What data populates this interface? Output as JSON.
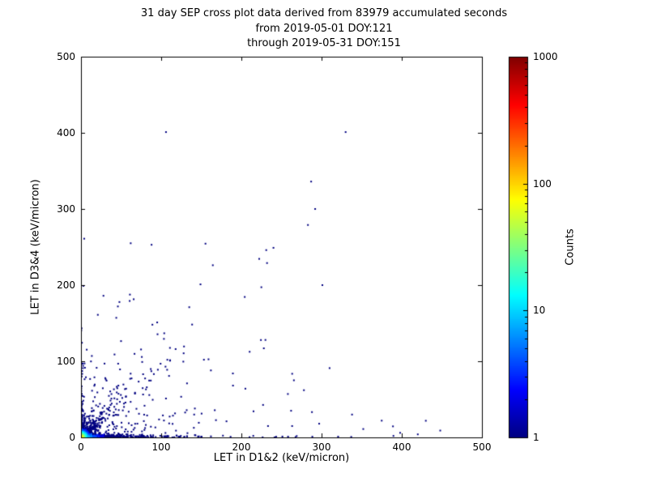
{
  "title": {
    "line1": "31 day SEP cross plot data derived from 83979 accumulated seconds",
    "line2": "from 2019-05-01 DOY:121",
    "line3": "through 2019-05-31 DOY:151"
  },
  "chart_data": {
    "type": "scatter",
    "xlabel": "LET in D1&2 (keV/micron)",
    "ylabel": "LET in D3&4 (keV/micron)",
    "xlim": [
      0,
      500
    ],
    "ylim": [
      0,
      500
    ],
    "x_ticks": [
      0,
      100,
      200,
      300,
      400,
      500
    ],
    "y_ticks": [
      0,
      100,
      200,
      300,
      400,
      500
    ],
    "grid": false,
    "seed": 42,
    "colorbar": {
      "label": "Counts",
      "scale": "log",
      "min": 1,
      "max": 1000,
      "ticks": [
        1,
        10,
        100,
        1000
      ],
      "colormap": "jet",
      "stops": [
        [
          0,
          "#000080"
        ],
        [
          0.125,
          "#0000ff"
        ],
        [
          0.375,
          "#00ffff"
        ],
        [
          0.625,
          "#ffff00"
        ],
        [
          0.875,
          "#ff0000"
        ],
        [
          1,
          "#800000"
        ]
      ]
    },
    "points": [
      [
        330,
        401,
        1
      ],
      [
        106,
        401,
        1
      ],
      [
        287,
        336,
        1
      ],
      [
        292,
        300,
        1
      ],
      [
        283,
        279,
        1
      ],
      [
        231,
        246,
        1
      ],
      [
        240,
        249,
        1
      ],
      [
        62,
        255,
        1
      ],
      [
        88,
        253,
        1
      ],
      [
        4,
        261,
        1
      ],
      [
        3,
        199,
        1
      ],
      [
        149,
        201,
        1
      ],
      [
        232,
        229,
        1
      ],
      [
        301,
        200,
        1
      ],
      [
        135,
        171,
        1
      ],
      [
        46,
        172,
        1
      ],
      [
        230,
        128,
        1
      ],
      [
        310,
        91,
        1
      ],
      [
        228,
        117,
        1
      ],
      [
        258,
        57,
        1
      ],
      [
        278,
        62,
        1
      ],
      [
        375,
        22,
        1
      ],
      [
        448,
        9,
        1
      ],
      [
        352,
        11,
        1
      ],
      [
        118,
        116,
        1
      ],
      [
        95,
        151,
        1
      ],
      [
        28,
        186,
        1
      ],
      [
        21,
        161,
        1
      ],
      [
        162,
        88,
        1
      ],
      [
        205,
        64,
        1
      ],
      [
        338,
        30,
        1
      ],
      [
        398,
        6,
        1
      ],
      [
        420,
        4,
        1
      ],
      [
        262,
        35,
        1
      ],
      [
        297,
        18,
        1
      ]
    ],
    "clusters": [
      {
        "type": "blob",
        "n": 900,
        "sx": 4.5,
        "sy": 4.5,
        "amp": 90,
        "falloff": 3.0
      },
      {
        "type": "blob",
        "n": 250,
        "sx": 10,
        "sy": 10,
        "amp": 6,
        "falloff": 6
      },
      {
        "type": "band_x",
        "n": 420,
        "x_scale": 22,
        "x_max": 130,
        "y_scale": 1.6,
        "y_max": 8,
        "amp": 18,
        "falloff": 12
      },
      {
        "type": "band_x",
        "n": 120,
        "x_scale": 90,
        "x_max": 460,
        "y_scale": 1.4,
        "y_max": 6,
        "amp": 2,
        "falloff": 60
      },
      {
        "type": "band_y",
        "n": 90,
        "y_scale": 28,
        "y_max": 165,
        "x_scale": 1.4,
        "x_max": 7,
        "amp": 5,
        "falloff": 12
      },
      {
        "type": "diag",
        "n": 150,
        "t_scale": 26,
        "t_max": 112,
        "spread": 0.35,
        "amp": 3
      },
      {
        "type": "field",
        "n": 110,
        "x_scale": 95,
        "x_max": 470,
        "y_scale": 75,
        "y_max": 320
      },
      {
        "type": "field",
        "n": 140,
        "x_scale": 42,
        "x_max": 210,
        "y_scale": 32,
        "y_max": 160
      }
    ]
  }
}
